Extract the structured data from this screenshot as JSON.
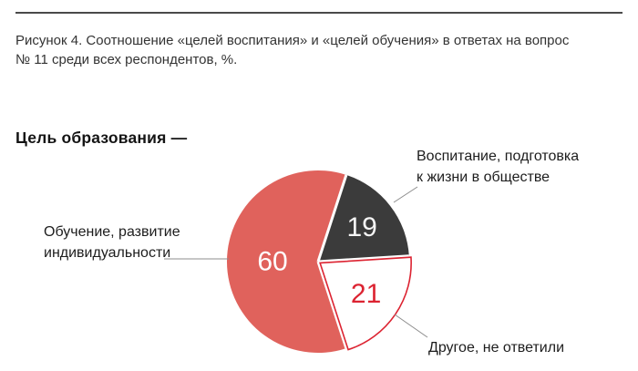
{
  "figure_caption": {
    "line1": "Рисунок 4. Соотношение «целей воспитания» и «целей обучения» в ответах на вопрос",
    "line2": "№ 11 среди всех респондентов, %."
  },
  "chart_heading": "Цель образования —",
  "chart_data": {
    "type": "pie",
    "title": "Цель образования —",
    "unit": "%",
    "start_angle_clockwise_from_north_deg": 18,
    "legend_position": "callout-labels",
    "slices": [
      {
        "label": "Воспитание, подготовка к жизни в обществе",
        "value": 19,
        "color": "#3B3B3B",
        "value_color": "#F5F5F5",
        "exploded": false
      },
      {
        "label": "Другое, не ответили",
        "value": 21,
        "color": "#FFFFFF",
        "outline": "#DC2331",
        "value_color": "#DC2331",
        "exploded": true
      },
      {
        "label": "Обучение, развитие индивидуальности",
        "value": 60,
        "color": "#E0625C",
        "value_color": "#FFFFFF",
        "exploded": false
      }
    ]
  },
  "callouts": {
    "vospitanie": {
      "line1": "Воспитание, подготовка",
      "line2": "к жизни в обществе"
    },
    "obuchenie": {
      "line1": "Обучение, развитие",
      "line2": "индивидуальности"
    },
    "drugoe": {
      "text": "Другое, не ответили"
    }
  },
  "colors": {
    "accent_salmon": "#E0625C",
    "accent_dark": "#3B3B3B",
    "accent_red": "#DC2331",
    "leader_line": "#8C8C8C",
    "rule": "#4A4A4A",
    "background": "#FFFFFF"
  }
}
